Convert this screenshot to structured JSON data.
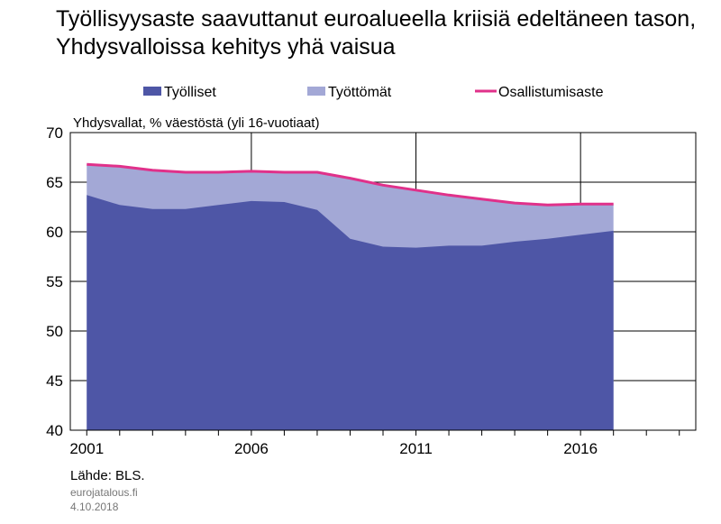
{
  "title": "Työllisyysaste saavuttanut euroalueella kriisiä edeltäneen tason, Yhdysvalloissa kehitys yhä vaisua",
  "source": "Lähde: BLS.",
  "site": "eurojatalous.fi",
  "date": "4.10.2018",
  "chart_data": {
    "type": "area",
    "subtitle": "Yhdysvallat, % väestöstä (yli 16-vuotiaat)",
    "x": [
      2001,
      2002,
      2003,
      2004,
      2005,
      2006,
      2007,
      2008,
      2009,
      2010,
      2011,
      2012,
      2013,
      2014,
      2015,
      2016,
      2017
    ],
    "series": [
      {
        "name": "Työlliset",
        "kind": "area",
        "color": "#4e56a6",
        "values": [
          63.7,
          62.7,
          62.3,
          62.3,
          62.7,
          63.1,
          63.0,
          62.2,
          59.3,
          58.5,
          58.4,
          58.6,
          58.6,
          59.0,
          59.3,
          59.7,
          60.1
        ]
      },
      {
        "name": "Työttömät",
        "kind": "area-stacked",
        "color": "#a3a8d6",
        "values": [
          3.1,
          3.9,
          3.9,
          3.7,
          3.3,
          3.0,
          3.0,
          3.8,
          6.1,
          6.2,
          5.8,
          5.1,
          4.7,
          3.9,
          3.4,
          3.1,
          2.7
        ]
      },
      {
        "name": "Osallistumisaste",
        "kind": "line",
        "color": "#e0318a",
        "values": [
          66.8,
          66.6,
          66.2,
          66.0,
          66.0,
          66.1,
          66.0,
          66.0,
          65.4,
          64.7,
          64.2,
          63.7,
          63.3,
          62.9,
          62.7,
          62.8,
          62.8
        ]
      }
    ],
    "ylim": [
      40,
      70
    ],
    "yticks": [
      70,
      65,
      60,
      55,
      50,
      45,
      40
    ],
    "xlim": [
      2000.5,
      2019.5
    ],
    "xticks": [
      2001,
      2006,
      2011,
      2016
    ],
    "grid": true,
    "legend": "top"
  }
}
